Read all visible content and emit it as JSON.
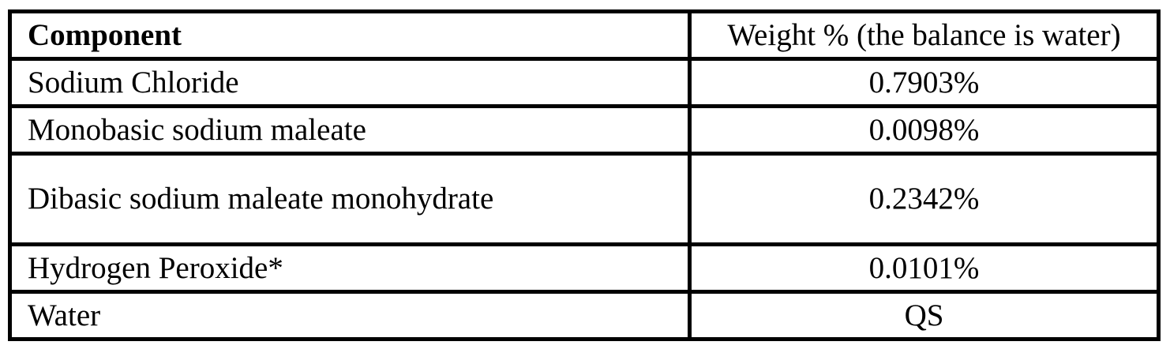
{
  "table": {
    "headers": [
      "Component",
      "Weight % (the balance is water)"
    ],
    "rows": [
      [
        "Sodium Chloride",
        "0.7903%"
      ],
      [
        "Monobasic sodium maleate",
        "0.0098%"
      ],
      [
        "Dibasic sodium maleate monohydrate",
        "0.2342%"
      ],
      [
        "Hydrogen Peroxide*",
        "0.0101%"
      ],
      [
        "Water",
        "QS"
      ]
    ]
  }
}
